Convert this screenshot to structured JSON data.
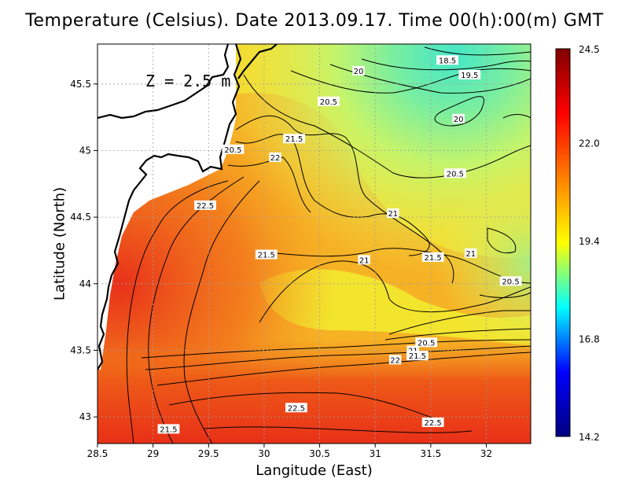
{
  "title": "Temperature (Celsius). Date 2013.09.17. Time 00(h):00(m)  GMT",
  "depth_label": "Z = 2.5 m",
  "x_axis": {
    "label": "Langitude (East)",
    "ticks": [
      "28.5",
      "29",
      "29.5",
      "30",
      "30.5",
      "31",
      "31.5",
      "32"
    ],
    "range": [
      28.5,
      32.4
    ]
  },
  "y_axis": {
    "label": "Latitude (North)",
    "ticks": [
      "43",
      "43.5",
      "44",
      "44.5",
      "45",
      "45.5"
    ],
    "range": [
      42.8,
      45.8
    ]
  },
  "colorbar": {
    "ticks": [
      "24.5",
      "22.0",
      "19.4",
      "16.8",
      "14.2"
    ],
    "min": 14.2,
    "max": 24.5,
    "colors": [
      "#000080",
      "#0000ff",
      "#00ffff",
      "#ffff00",
      "#ff8000",
      "#ff0000",
      "#800000"
    ]
  },
  "contour_labels": [
    {
      "text": "18.5",
      "lon": 31.65,
      "lat": 45.68
    },
    {
      "text": "19.5",
      "lon": 31.85,
      "lat": 45.57
    },
    {
      "text": "20",
      "lon": 30.85,
      "lat": 45.6
    },
    {
      "text": "20.5",
      "lon": 30.58,
      "lat": 45.37
    },
    {
      "text": "20",
      "lon": 31.75,
      "lat": 45.24
    },
    {
      "text": "21.5",
      "lon": 30.27,
      "lat": 45.09
    },
    {
      "text": "20.5",
      "lon": 29.72,
      "lat": 45.01
    },
    {
      "text": "22",
      "lon": 30.1,
      "lat": 44.95
    },
    {
      "text": "20.5",
      "lon": 31.72,
      "lat": 44.83
    },
    {
      "text": "22.5",
      "lon": 29.47,
      "lat": 44.59
    },
    {
      "text": "21",
      "lon": 31.16,
      "lat": 44.53
    },
    {
      "text": "21.5",
      "lon": 30.02,
      "lat": 44.22
    },
    {
      "text": "21",
      "lon": 30.9,
      "lat": 44.18
    },
    {
      "text": "21.5",
      "lon": 31.52,
      "lat": 44.2
    },
    {
      "text": "21",
      "lon": 31.86,
      "lat": 44.23
    },
    {
      "text": "20.5",
      "lon": 32.22,
      "lat": 44.02
    },
    {
      "text": "20.5",
      "lon": 31.46,
      "lat": 43.56
    },
    {
      "text": "21",
      "lon": 31.34,
      "lat": 43.5
    },
    {
      "text": "21.5",
      "lon": 31.38,
      "lat": 43.46
    },
    {
      "text": "22",
      "lon": 31.18,
      "lat": 43.43
    },
    {
      "text": "22.5",
      "lon": 30.29,
      "lat": 43.07
    },
    {
      "text": "22.5",
      "lon": 31.52,
      "lat": 42.96
    },
    {
      "text": "21.5",
      "lon": 29.14,
      "lat": 42.91
    }
  ]
}
